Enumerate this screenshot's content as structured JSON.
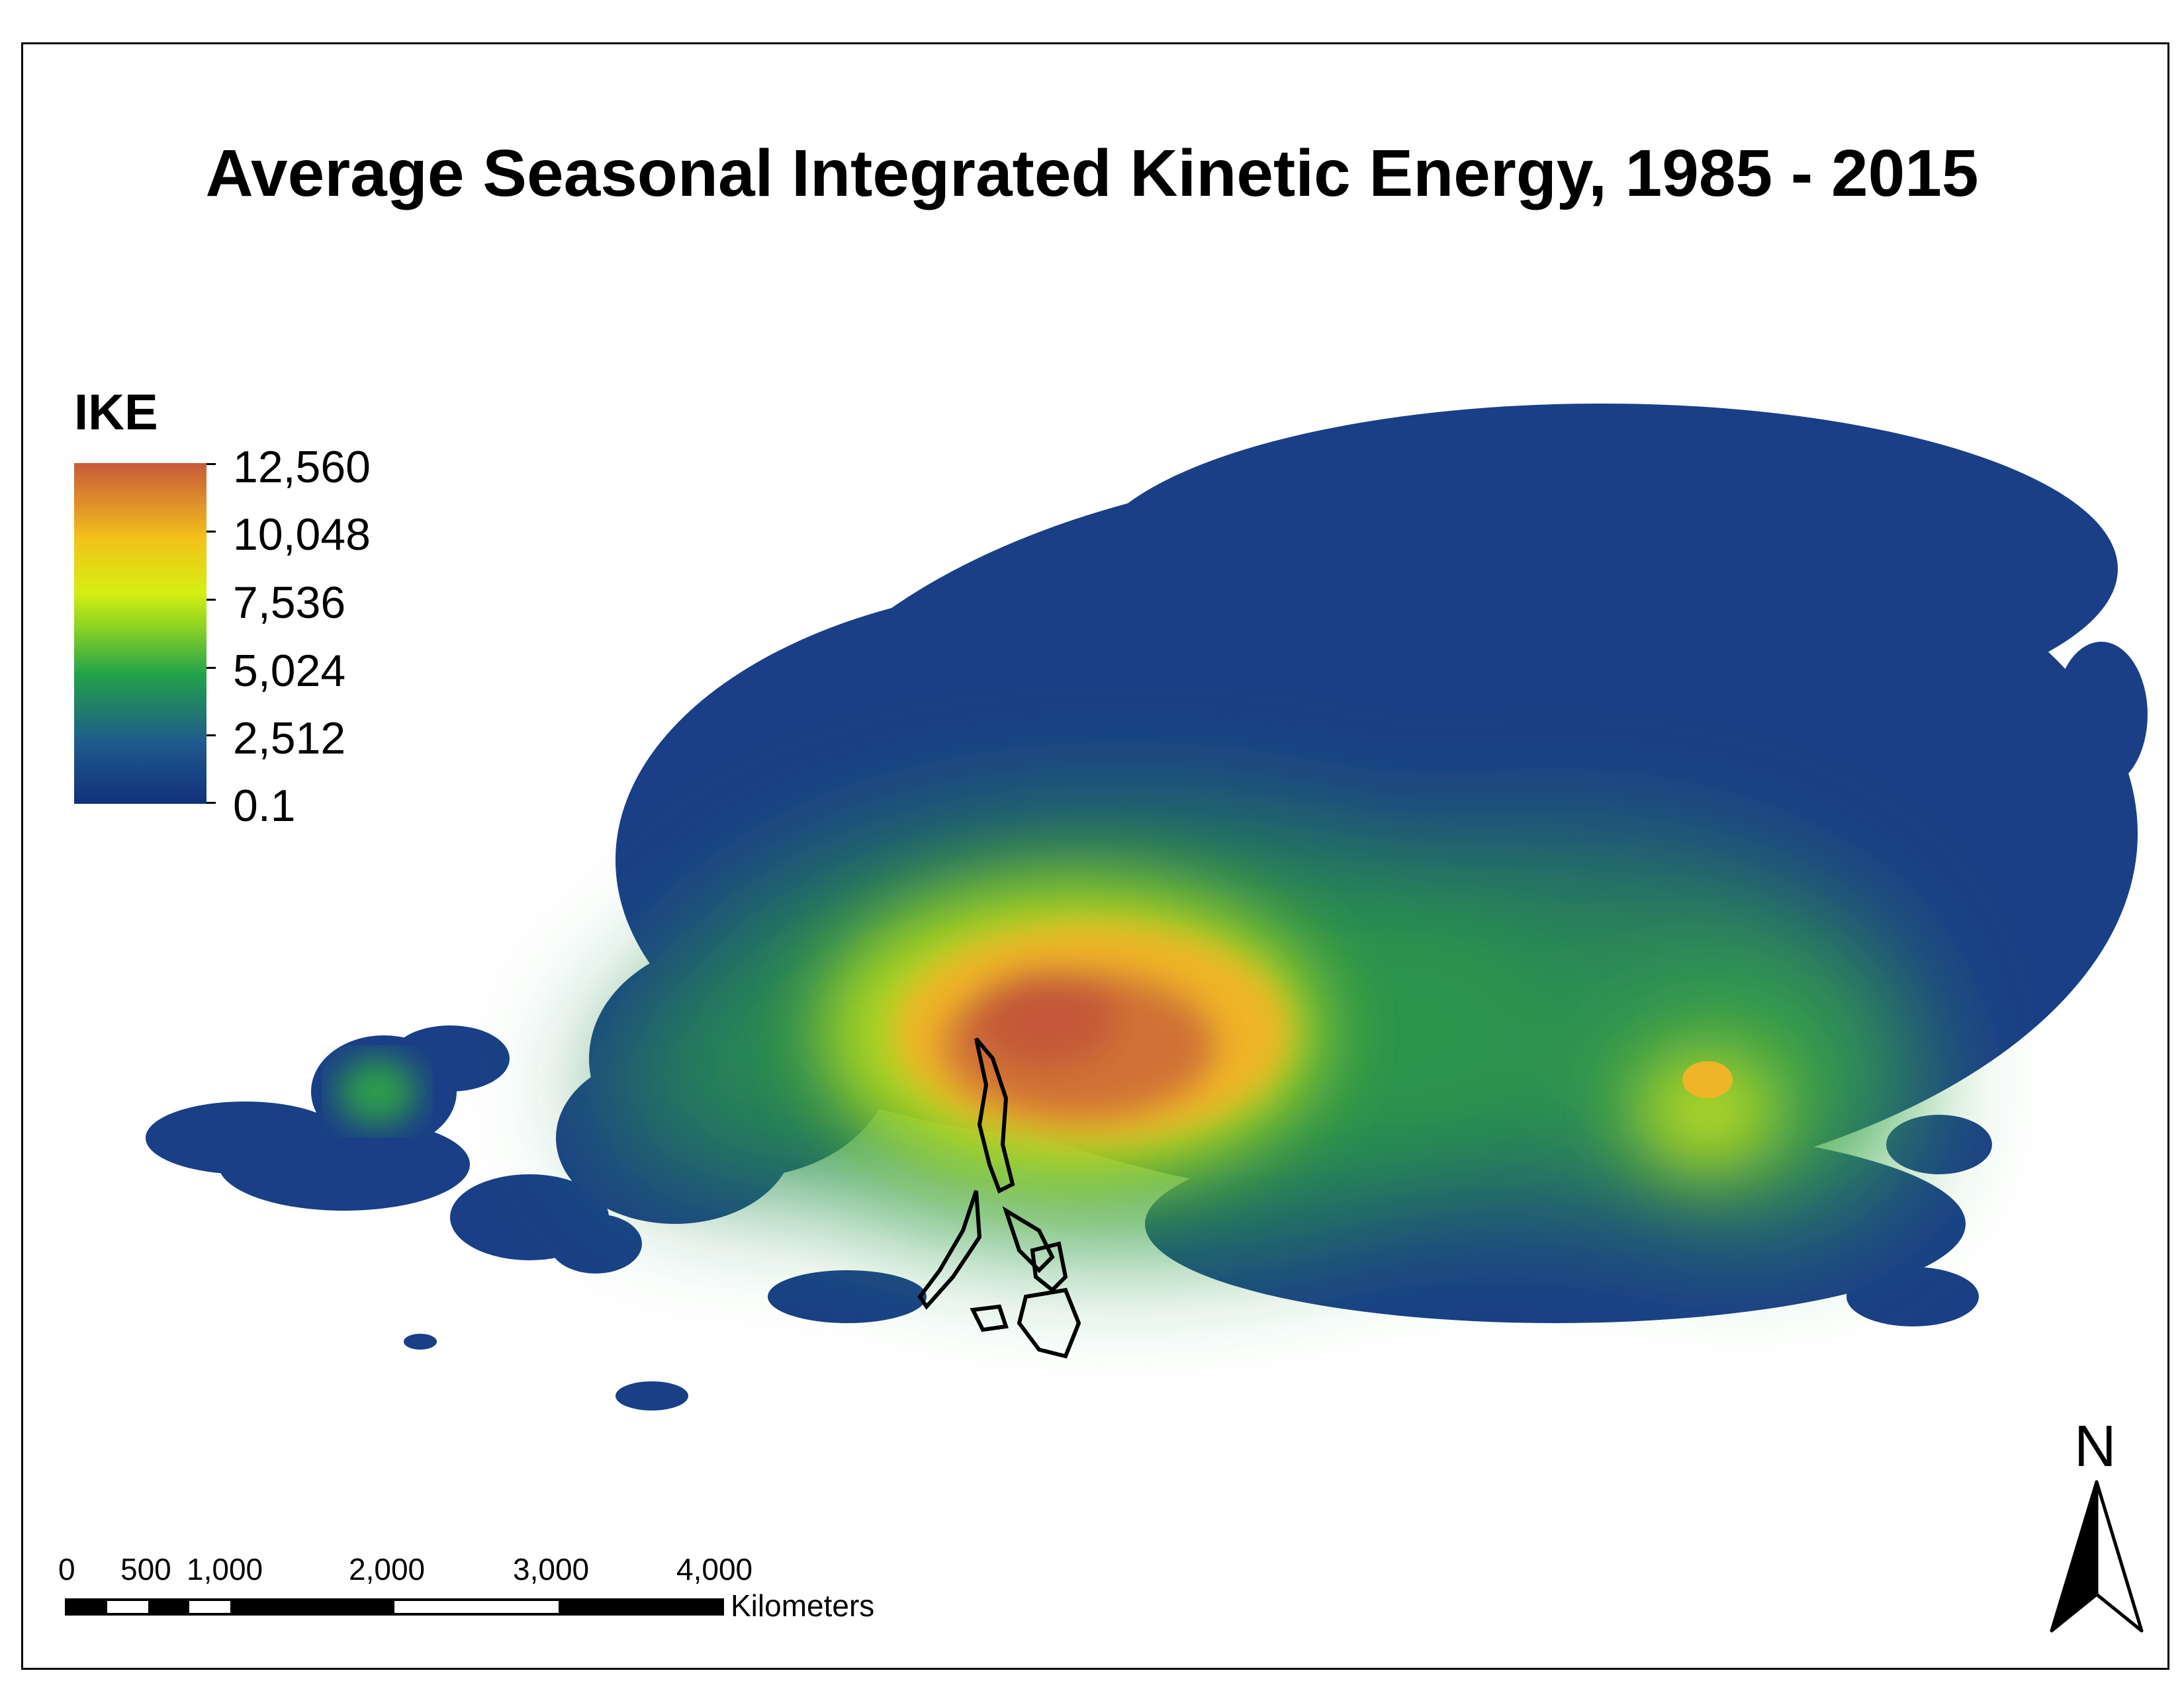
{
  "title": "Average Seasonal Integrated Kinetic Energy, 1985 - 2015",
  "legend": {
    "title": "IKE",
    "labels": [
      "12,560",
      "10,048",
      "7,536",
      "5,024",
      "2,512",
      "0.1"
    ],
    "colors": [
      "#c85a3a",
      "#f2c21a",
      "#d6ee12",
      "#22a24a",
      "#1f5a8c",
      "#12307a"
    ]
  },
  "scale_bar": {
    "labels": [
      "0",
      "500",
      "1,000",
      "2,000",
      "3,000",
      "4,000"
    ],
    "unit": "Kilometers"
  },
  "north_arrow": {
    "letter": "N",
    "icon": "north-arrow-icon"
  }
}
